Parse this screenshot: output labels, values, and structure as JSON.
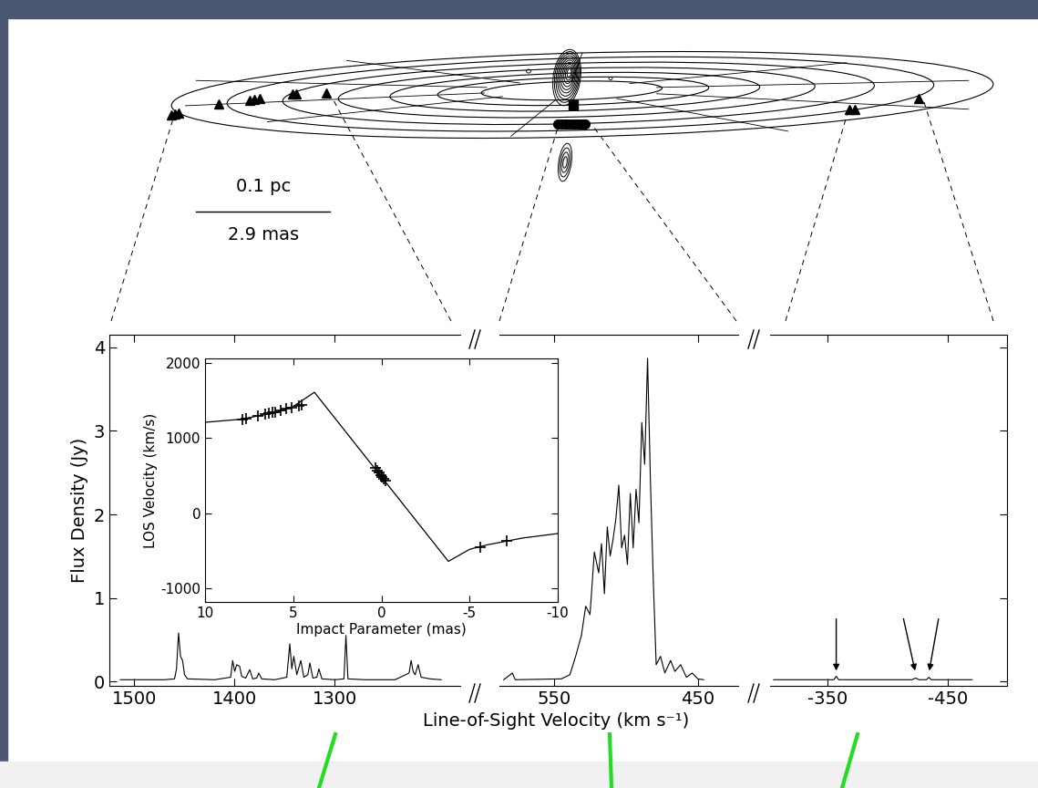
{
  "diagram": {
    "scale_bar": {
      "length": "0.1 pc",
      "angular": "2.9 mas"
    }
  },
  "chart_data": [
    {
      "type": "line",
      "x": [
        1514,
        1470,
        1460,
        1458,
        1456,
        1454,
        1452,
        1450,
        1447,
        1420,
        1404,
        1402,
        1400,
        1398,
        1395,
        1393,
        1389,
        1385,
        1382,
        1378,
        1376,
        1373,
        1360,
        1348,
        1345,
        1343,
        1341,
        1338,
        1334,
        1331,
        1327,
        1325,
        1322,
        1318,
        1316,
        1313,
        1300,
        1291,
        1289,
        1287,
        1270,
        1240,
        1226,
        1224,
        1222,
        1220,
        1217,
        1214,
        1205,
        1194
      ],
      "values": [
        0.02,
        0.02,
        0.03,
        0.15,
        0.58,
        0.3,
        0.25,
        0.08,
        0.03,
        0.02,
        0.05,
        0.25,
        0.12,
        0.2,
        0.18,
        0.06,
        0.04,
        0.14,
        0.03,
        0.04,
        0.1,
        0.03,
        0.02,
        0.05,
        0.45,
        0.15,
        0.3,
        0.08,
        0.25,
        0.05,
        0.08,
        0.22,
        0.04,
        0.05,
        0.15,
        0.03,
        0.02,
        0.03,
        0.55,
        0.03,
        0.02,
        0.02,
        0.1,
        0.25,
        0.12,
        0.08,
        0.2,
        0.05,
        0.03,
        0.02
      ],
      "xlim": [
        1525,
        1175
      ],
      "xticks": [
        1500,
        1400,
        1300
      ],
      "ylim": [
        -0.05,
        4.15
      ],
      "yticks": [
        0,
        1,
        2,
        3,
        4
      ],
      "y_label": "Flux Density (Jy)",
      "x_label": "Line-of-Sight Velocity (km s⁻¹)"
    },
    {
      "type": "line",
      "x": [
        585,
        579,
        577,
        545,
        539,
        535,
        531,
        528,
        525,
        522,
        519,
        517,
        515,
        513,
        511,
        509,
        507,
        505,
        503,
        501,
        499,
        497,
        495,
        493,
        491,
        489,
        487,
        485,
        483,
        481,
        479,
        476,
        473,
        469,
        466,
        462,
        458,
        454,
        450,
        446
      ],
      "values": [
        0.02,
        0.1,
        0.02,
        0.03,
        0.08,
        0.3,
        0.55,
        0.9,
        0.8,
        1.55,
        1.3,
        1.65,
        1.05,
        1.85,
        1.5,
        1.7,
        1.95,
        2.35,
        1.6,
        1.75,
        1.4,
        2.25,
        1.6,
        2.3,
        1.9,
        3.1,
        2.6,
        3.87,
        2.4,
        1.2,
        0.2,
        0.3,
        0.1,
        0.25,
        0.12,
        0.2,
        0.05,
        0.1,
        0.03,
        0.02
      ],
      "xlim": [
        588,
        422
      ],
      "xticks": [
        550,
        450
      ],
      "ylim": [
        -0.05,
        4.15
      ],
      "yticks": [
        0,
        1,
        2,
        3,
        4
      ],
      "tick_labels": "x"
    },
    {
      "type": "line",
      "x": [
        -305,
        -355,
        -357,
        -359,
        -420,
        -423,
        -426,
        -432,
        -434,
        -436,
        -470
      ],
      "values": [
        0.02,
        0.02,
        0.06,
        0.02,
        0.02,
        0.04,
        0.02,
        0.02,
        0.05,
        0.02,
        0.02
      ],
      "xlim": [
        -302,
        -499
      ],
      "xticks": [
        -350,
        -450
      ],
      "ylim": [
        -0.05,
        4.15
      ],
      "yticks": [
        0,
        1,
        2,
        3,
        4
      ],
      "tick_labels": "x",
      "arrows": [
        -357,
        -423,
        -434
      ]
    },
    {
      "type": "scatter",
      "x_label": "Impact Parameter (mas)",
      "y_label": "LOS Velocity (km/s)",
      "xlim": [
        10,
        -10
      ],
      "xticks": [
        10,
        5,
        0,
        -5,
        -10
      ],
      "ylim": [
        -1180,
        2060
      ],
      "yticks": [
        -1000,
        0,
        1000,
        2000
      ],
      "series": [
        {
          "type": "scatter",
          "marker": "+",
          "color": "#000000",
          "x": [
            7.9,
            7.7,
            7.0,
            6.6,
            6.4,
            6.2,
            6.0,
            5.7,
            5.4,
            5.1,
            4.7,
            4.5,
            0.35,
            0.25,
            0.15,
            0.05,
            -0.05,
            -0.15,
            -0.25,
            -5.6,
            -7.1
          ],
          "values": [
            1250,
            1265,
            1300,
            1320,
            1330,
            1345,
            1350,
            1370,
            1390,
            1405,
            1430,
            1440,
            600,
            570,
            540,
            510,
            480,
            455,
            430,
            -450,
            -370
          ]
        },
        {
          "type": "line",
          "color": "#000000",
          "x": [
            10,
            8,
            6,
            5,
            3.8,
            -3.8,
            -5,
            -6,
            -8,
            -10
          ],
          "values": [
            1210,
            1250,
            1340,
            1420,
            1610,
            -640,
            -480,
            -420,
            -330,
            -270
          ]
        }
      ]
    }
  ]
}
